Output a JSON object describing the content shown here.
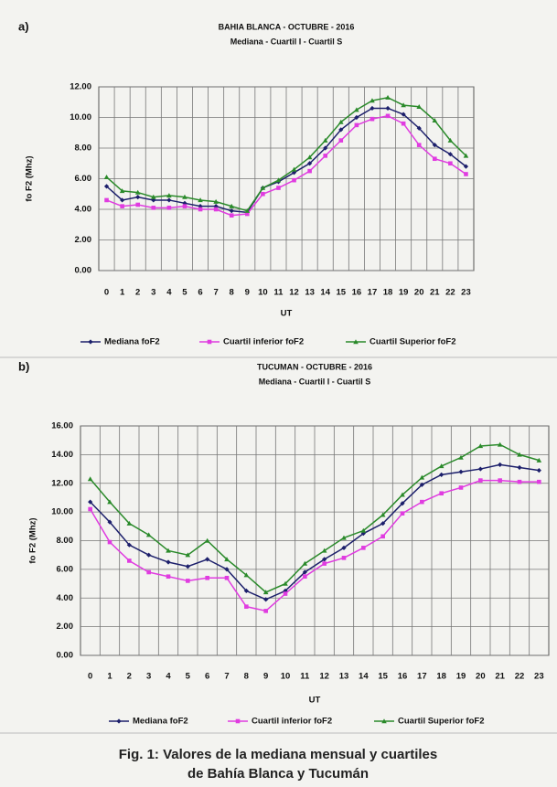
{
  "chart_data": [
    {
      "type": "line",
      "panel_label": "a)",
      "title": "BAHIA BLANCA - OCTUBRE - 2016",
      "subtitle": "Mediana - Cuartil I - Cuartil S",
      "y_label": "fo F2 (Mhz)",
      "x_label": "UT",
      "categories": [
        "0",
        "1",
        "2",
        "3",
        "4",
        "5",
        "6",
        "7",
        "8",
        "9",
        "10",
        "11",
        "12",
        "13",
        "14",
        "15",
        "16",
        "17",
        "18",
        "19",
        "20",
        "21",
        "22",
        "23"
      ],
      "ylim": [
        0,
        12
      ],
      "yticks": [
        {
          "value": 0,
          "label": "0.00"
        },
        {
          "value": 2,
          "label": "2.00"
        },
        {
          "value": 4,
          "label": "4.00"
        },
        {
          "value": 6,
          "label": "6.00"
        },
        {
          "value": 8,
          "label": "8.00"
        },
        {
          "value": 10,
          "label": "10.00"
        },
        {
          "value": 12,
          "label": "12.00"
        }
      ],
      "grid": true,
      "series": [
        {
          "name": "Mediana foF2",
          "color": "#1c1f6b",
          "values": [
            5.5,
            4.6,
            4.8,
            4.6,
            4.6,
            4.4,
            4.2,
            4.2,
            3.9,
            3.8,
            5.4,
            5.8,
            6.4,
            7.0,
            8.0,
            9.2,
            10.0,
            10.6,
            10.6,
            10.2,
            9.3,
            8.2,
            7.6,
            6.8
          ]
        },
        {
          "name": "Cuartil inferior foF2",
          "color": "#e03ce0",
          "values": [
            4.6,
            4.2,
            4.3,
            4.1,
            4.1,
            4.2,
            4.0,
            4.0,
            3.6,
            3.7,
            5.0,
            5.4,
            5.9,
            6.5,
            7.5,
            8.5,
            9.5,
            9.9,
            10.1,
            9.6,
            8.2,
            7.3,
            7.0,
            6.3
          ]
        },
        {
          "name": "Cuartil Superior foF2",
          "color": "#2a8a2a",
          "values": [
            6.1,
            5.2,
            5.1,
            4.8,
            4.9,
            4.8,
            4.6,
            4.5,
            4.2,
            3.9,
            5.4,
            5.9,
            6.6,
            7.4,
            8.5,
            9.7,
            10.5,
            11.1,
            11.3,
            10.8,
            10.7,
            9.8,
            8.5,
            7.5
          ]
        }
      ]
    },
    {
      "type": "line",
      "panel_label": "b)",
      "title": "TUCUMAN - OCTUBRE - 2016",
      "subtitle": "Mediana - Cuartil I - Cuartil S",
      "y_label": "fo F2 (Mhz)",
      "x_label": "UT",
      "categories": [
        "0",
        "1",
        "2",
        "3",
        "4",
        "5",
        "6",
        "7",
        "8",
        "9",
        "10",
        "11",
        "12",
        "13",
        "14",
        "15",
        "16",
        "17",
        "18",
        "19",
        "20",
        "21",
        "22",
        "23"
      ],
      "ylim": [
        0,
        16
      ],
      "yticks": [
        {
          "value": 0,
          "label": "0.00"
        },
        {
          "value": 2,
          "label": "2.00"
        },
        {
          "value": 4,
          "label": "4.00"
        },
        {
          "value": 6,
          "label": "6.00"
        },
        {
          "value": 8,
          "label": "8.00"
        },
        {
          "value": 10,
          "label": "10.00"
        },
        {
          "value": 12,
          "label": "12.00"
        },
        {
          "value": 14,
          "label": "14.00"
        },
        {
          "value": 16,
          "label": "16.00"
        }
      ],
      "grid": true,
      "series": [
        {
          "name": "Mediana foF2",
          "color": "#1c1f6b",
          "values": [
            10.7,
            9.3,
            7.7,
            7.0,
            6.5,
            6.2,
            6.7,
            6.0,
            4.5,
            3.9,
            4.5,
            5.8,
            6.7,
            7.5,
            8.5,
            9.2,
            10.6,
            11.9,
            12.6,
            12.8,
            13.0,
            13.3,
            13.1,
            12.9
          ]
        },
        {
          "name": "Cuartil inferior foF2",
          "color": "#e03ce0",
          "values": [
            10.2,
            7.9,
            6.6,
            5.8,
            5.5,
            5.2,
            5.4,
            5.4,
            3.4,
            3.1,
            4.3,
            5.5,
            6.4,
            6.8,
            7.5,
            8.3,
            9.9,
            10.7,
            11.3,
            11.7,
            12.2,
            12.2,
            12.1,
            12.1
          ]
        },
        {
          "name": "Cuartil Superior foF2",
          "color": "#2a8a2a",
          "values": [
            12.3,
            10.7,
            9.2,
            8.4,
            7.3,
            7.0,
            8.0,
            6.7,
            5.6,
            4.4,
            5.0,
            6.4,
            7.3,
            8.2,
            8.7,
            9.8,
            11.2,
            12.4,
            13.2,
            13.8,
            14.6,
            14.7,
            14.0,
            13.6
          ]
        }
      ]
    }
  ],
  "caption": [
    "Fig. 1: Valores de la mediana mensual y cuartiles",
    "de Bahía Blanca y Tucumán"
  ]
}
